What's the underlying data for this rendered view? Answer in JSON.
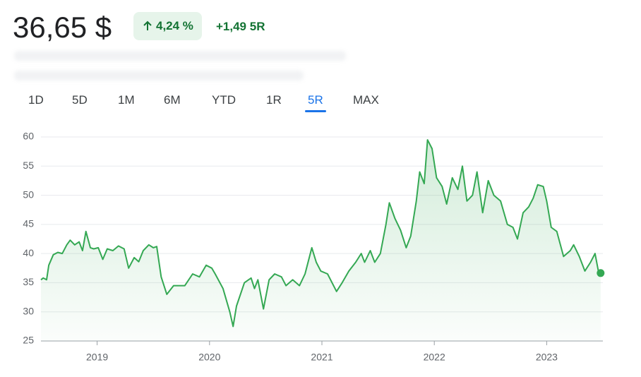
{
  "header": {
    "price": "36,65 $",
    "change_percent": "4,24 %",
    "change_abs": "+1,49 5R"
  },
  "tabs": [
    {
      "label": "1D"
    },
    {
      "label": "5D"
    },
    {
      "label": "1M"
    },
    {
      "label": "6M"
    },
    {
      "label": "YTD"
    },
    {
      "label": "1R"
    },
    {
      "label": "5R",
      "selected": true
    },
    {
      "label": "MAX"
    }
  ],
  "chart_data": {
    "type": "line",
    "xlim": [
      2018.5,
      2023.5
    ],
    "xticks": [
      2019,
      2020,
      2021,
      2022,
      2023
    ],
    "ylim": [
      25,
      60
    ],
    "yticks": [
      25,
      30,
      35,
      40,
      45,
      50,
      55,
      60
    ],
    "grid": true,
    "x": [
      2018.5,
      2018.52,
      2018.55,
      2018.57,
      2018.61,
      2018.65,
      2018.69,
      2018.73,
      2018.76,
      2018.8,
      2018.84,
      2018.87,
      2018.9,
      2018.94,
      2018.97,
      2019.01,
      2019.05,
      2019.09,
      2019.14,
      2019.19,
      2019.24,
      2019.28,
      2019.33,
      2019.37,
      2019.41,
      2019.46,
      2019.5,
      2019.53,
      2019.57,
      2019.62,
      2019.68,
      2019.78,
      2019.85,
      2019.91,
      2019.97,
      2020.02,
      2020.05,
      2020.12,
      2020.15,
      2020.18,
      2020.21,
      2020.24,
      2020.31,
      2020.37,
      2020.4,
      2020.43,
      2020.48,
      2020.53,
      2020.58,
      2020.64,
      2020.68,
      2020.74,
      2020.8,
      2020.85,
      2020.91,
      2020.95,
      2020.99,
      2021.05,
      2021.13,
      2021.18,
      2021.24,
      2021.3,
      2021.35,
      2021.38,
      2021.43,
      2021.47,
      2021.52,
      2021.57,
      2021.6,
      2021.65,
      2021.7,
      2021.75,
      2021.79,
      2021.84,
      2021.87,
      2021.91,
      2021.94,
      2021.98,
      2022.02,
      2022.07,
      2022.11,
      2022.16,
      2022.21,
      2022.25,
      2022.29,
      2022.34,
      2022.38,
      2022.43,
      2022.48,
      2022.53,
      2022.59,
      2022.65,
      2022.7,
      2022.74,
      2022.79,
      2022.84,
      2022.88,
      2022.92,
      2022.97,
      2023.0,
      2023.04,
      2023.09,
      2023.15,
      2023.21,
      2023.24,
      2023.29,
      2023.34,
      2023.39,
      2023.43,
      2023.46,
      2023.48
    ],
    "series": [
      {
        "color": "#34a853",
        "values": [
          35.5,
          35.8,
          35.5,
          38,
          39.8,
          40.2,
          40,
          41.5,
          42.3,
          41.5,
          42,
          40.5,
          43.8,
          41,
          40.8,
          41,
          39,
          40.8,
          40.5,
          41.3,
          40.8,
          37.5,
          39.3,
          38.6,
          40.5,
          41.5,
          41,
          41.2,
          36,
          33,
          34.5,
          34.5,
          36.5,
          36,
          38,
          37.5,
          36.5,
          34,
          32,
          30,
          27.5,
          31,
          35,
          35.8,
          34,
          35.5,
          30.5,
          35.5,
          36.5,
          36,
          34.5,
          35.5,
          34.5,
          36.5,
          41,
          38.5,
          37,
          36.5,
          33.5,
          35,
          37,
          38.5,
          40,
          38.5,
          40.5,
          38.5,
          40,
          45,
          48.7,
          46,
          44,
          41,
          43,
          49,
          54,
          52,
          59.5,
          58,
          53,
          51.5,
          48.5,
          53,
          51,
          55,
          49,
          50,
          54,
          47,
          52.5,
          50,
          49,
          45,
          44.5,
          42.5,
          47,
          48,
          49.5,
          51.8,
          51.5,
          49,
          44.5,
          43.8,
          39.5,
          40.5,
          41.5,
          39.5,
          37,
          38.5,
          40,
          37,
          36.65
        ]
      }
    ]
  }
}
